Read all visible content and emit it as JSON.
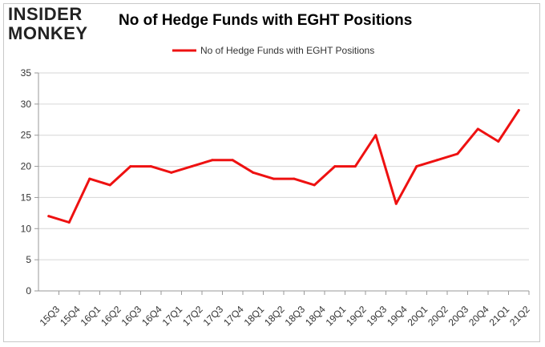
{
  "brand": {
    "logo_line1": "INSIDER",
    "logo_line2": "MONKEY"
  },
  "chart_data": {
    "type": "line",
    "title": "No of Hedge Funds with EGHT Positions",
    "xlabel": "",
    "ylabel": "",
    "ylim": [
      0,
      35
    ],
    "yticks": [
      0,
      5,
      10,
      15,
      20,
      25,
      30,
      35
    ],
    "grid": true,
    "legend_position": "top-center",
    "categories": [
      "15Q3",
      "15Q4",
      "16Q1",
      "16Q2",
      "16Q3",
      "16Q4",
      "17Q1",
      "17Q2",
      "17Q3",
      "17Q4",
      "18Q1",
      "18Q2",
      "18Q3",
      "18Q4",
      "19Q1",
      "19Q2",
      "19Q3",
      "19Q4",
      "20Q1",
      "20Q2",
      "20Q3",
      "20Q4",
      "21Q1",
      "21Q2"
    ],
    "series": [
      {
        "name": "No of Hedge Funds with EGHT Positions",
        "color": "#ee1111",
        "values": [
          12,
          11,
          18,
          17,
          20,
          20,
          19,
          20,
          21,
          21,
          19,
          18,
          18,
          17,
          20,
          20,
          25,
          14,
          20,
          21,
          22,
          26,
          24,
          29
        ]
      }
    ]
  }
}
